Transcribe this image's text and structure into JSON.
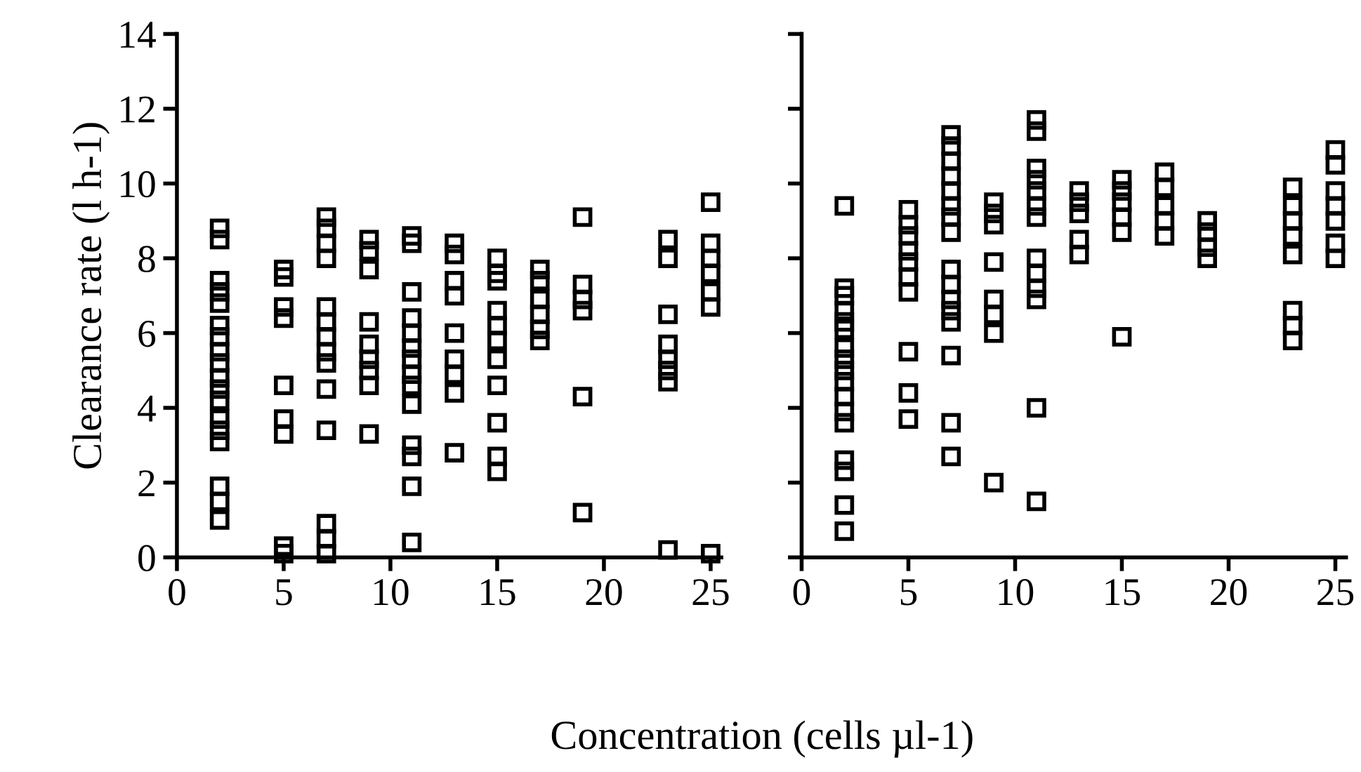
{
  "chart_data": [
    {
      "type": "scatter",
      "xlabel": "Concentration (cells µl-1)",
      "ylabel": "Clearance rate (l h-1)",
      "xlim": [
        0,
        25.5
      ],
      "ylim": [
        0,
        14
      ],
      "xticks": [
        0,
        5,
        10,
        15,
        20,
        25
      ],
      "yticks": [
        0,
        2,
        4,
        6,
        8,
        10,
        12,
        14
      ],
      "marker": "square",
      "grid": false,
      "legend": false,
      "series": [
        {
          "color": "#000000",
          "x": [
            2,
            2,
            2,
            2,
            2,
            2,
            2,
            2,
            2,
            2,
            2,
            2,
            2,
            2,
            2,
            2,
            2,
            2,
            5,
            5,
            5,
            5,
            5,
            5,
            5,
            5,
            5,
            7,
            7,
            7,
            7,
            7,
            7,
            7,
            7,
            7,
            7,
            7,
            7,
            7,
            7,
            9,
            9,
            9,
            9,
            9,
            9,
            9,
            9,
            9,
            11,
            11,
            11,
            11,
            11,
            11,
            11,
            11,
            11,
            11,
            11,
            11,
            11,
            11,
            13,
            13,
            13,
            13,
            13,
            13,
            13,
            13,
            13,
            15,
            15,
            15,
            15,
            15,
            15,
            15,
            15,
            15,
            15,
            15,
            17,
            17,
            17,
            17,
            17,
            17,
            19,
            19,
            19,
            19,
            19,
            19,
            23,
            23,
            23,
            23,
            23,
            23,
            23,
            23,
            25,
            25,
            25,
            25,
            25,
            25,
            25
          ],
          "values": [
            8.8,
            8.5,
            7.4,
            7.1,
            6.8,
            6.2,
            5.9,
            5.5,
            5.2,
            4.8,
            4.5,
            4.2,
            3.7,
            3.4,
            3.1,
            1.9,
            1.5,
            1.0,
            7.7,
            7.5,
            6.7,
            6.4,
            4.6,
            3.7,
            3.3,
            0.3,
            0.1,
            9.1,
            8.8,
            8.4,
            8.0,
            6.7,
            6.3,
            5.9,
            5.5,
            5.2,
            4.5,
            3.4,
            0.9,
            0.5,
            0.1,
            8.5,
            8.2,
            7.7,
            6.3,
            5.7,
            5.3,
            5.0,
            4.6,
            3.3,
            8.6,
            8.4,
            7.1,
            6.4,
            6.0,
            5.6,
            5.3,
            4.9,
            4.6,
            4.1,
            3.0,
            2.7,
            1.9,
            0.4,
            8.4,
            8.1,
            7.4,
            7.0,
            6.0,
            5.3,
            4.9,
            4.4,
            2.8,
            8.0,
            7.6,
            7.4,
            6.6,
            6.2,
            5.8,
            5.3,
            4.6,
            3.6,
            2.7,
            2.3,
            7.7,
            7.4,
            6.9,
            6.5,
            6.1,
            5.8,
            9.1,
            7.3,
            6.9,
            6.6,
            4.3,
            1.2,
            8.5,
            8.0,
            6.5,
            5.7,
            5.3,
            5.0,
            4.7,
            0.2,
            9.5,
            8.4,
            8.0,
            7.6,
            7.1,
            6.7,
            0.1
          ]
        }
      ]
    },
    {
      "type": "scatter",
      "xlim": [
        0,
        25.5
      ],
      "ylim": [
        0,
        14
      ],
      "xticks": [
        0,
        5,
        10,
        15,
        20,
        25
      ],
      "yticks": [
        {
          "value": 0,
          "label": null
        },
        {
          "value": 2,
          "label": null
        },
        {
          "value": 4,
          "label": null
        },
        {
          "value": 6,
          "label": null
        },
        {
          "value": 8,
          "label": null
        },
        {
          "value": 10,
          "label": null
        },
        {
          "value": 12,
          "label": null
        },
        {
          "value": 14,
          "label": null
        }
      ],
      "tick_labels": "x",
      "marker": "square",
      "grid": false,
      "legend": false,
      "series": [
        {
          "color": "#000000",
          "x": [
            2,
            2,
            2,
            2,
            2,
            2,
            2,
            2,
            2,
            2,
            2,
            2,
            2,
            2,
            2,
            2,
            2,
            5,
            5,
            5,
            5,
            5,
            5,
            5,
            5,
            5,
            5,
            7,
            7,
            7,
            7,
            7,
            7,
            7,
            7,
            7,
            7,
            7,
            7,
            7,
            7,
            7,
            7,
            9,
            9,
            9,
            9,
            9,
            9,
            9,
            9,
            11,
            11,
            11,
            11,
            11,
            11,
            11,
            11,
            11,
            11,
            11,
            11,
            11,
            13,
            13,
            13,
            13,
            13,
            15,
            15,
            15,
            15,
            15,
            15,
            17,
            17,
            17,
            17,
            17,
            19,
            19,
            19,
            19,
            23,
            23,
            23,
            23,
            23,
            23,
            23,
            23,
            25,
            25,
            25,
            25,
            25,
            25,
            25
          ],
          "values": [
            9.4,
            7.2,
            7.0,
            6.6,
            6.3,
            6.1,
            5.6,
            5.3,
            5.0,
            4.7,
            4.3,
            3.9,
            3.6,
            2.6,
            2.3,
            1.4,
            0.7,
            9.3,
            8.9,
            8.6,
            8.2,
            7.9,
            7.5,
            7.1,
            5.5,
            4.4,
            3.7,
            11.3,
            11.0,
            10.6,
            10.2,
            9.8,
            9.4,
            9.1,
            8.7,
            7.7,
            7.3,
            6.9,
            6.6,
            6.3,
            5.4,
            3.6,
            2.7,
            9.5,
            9.2,
            8.9,
            7.9,
            6.9,
            6.5,
            6.0,
            2.0,
            11.7,
            11.4,
            10.4,
            10.1,
            9.8,
            9.4,
            9.1,
            8.0,
            7.6,
            7.2,
            6.9,
            4.0,
            1.5,
            9.8,
            9.5,
            9.2,
            8.5,
            8.1,
            10.1,
            9.8,
            9.5,
            9.1,
            8.7,
            5.9,
            10.3,
            9.9,
            9.4,
            9.0,
            8.6,
            9.0,
            8.7,
            8.3,
            8.0,
            9.9,
            9.4,
            9.0,
            8.6,
            8.1,
            6.6,
            6.2,
            5.8,
            10.9,
            10.5,
            9.8,
            9.4,
            9.0,
            8.4,
            8.0
          ]
        }
      ]
    }
  ]
}
